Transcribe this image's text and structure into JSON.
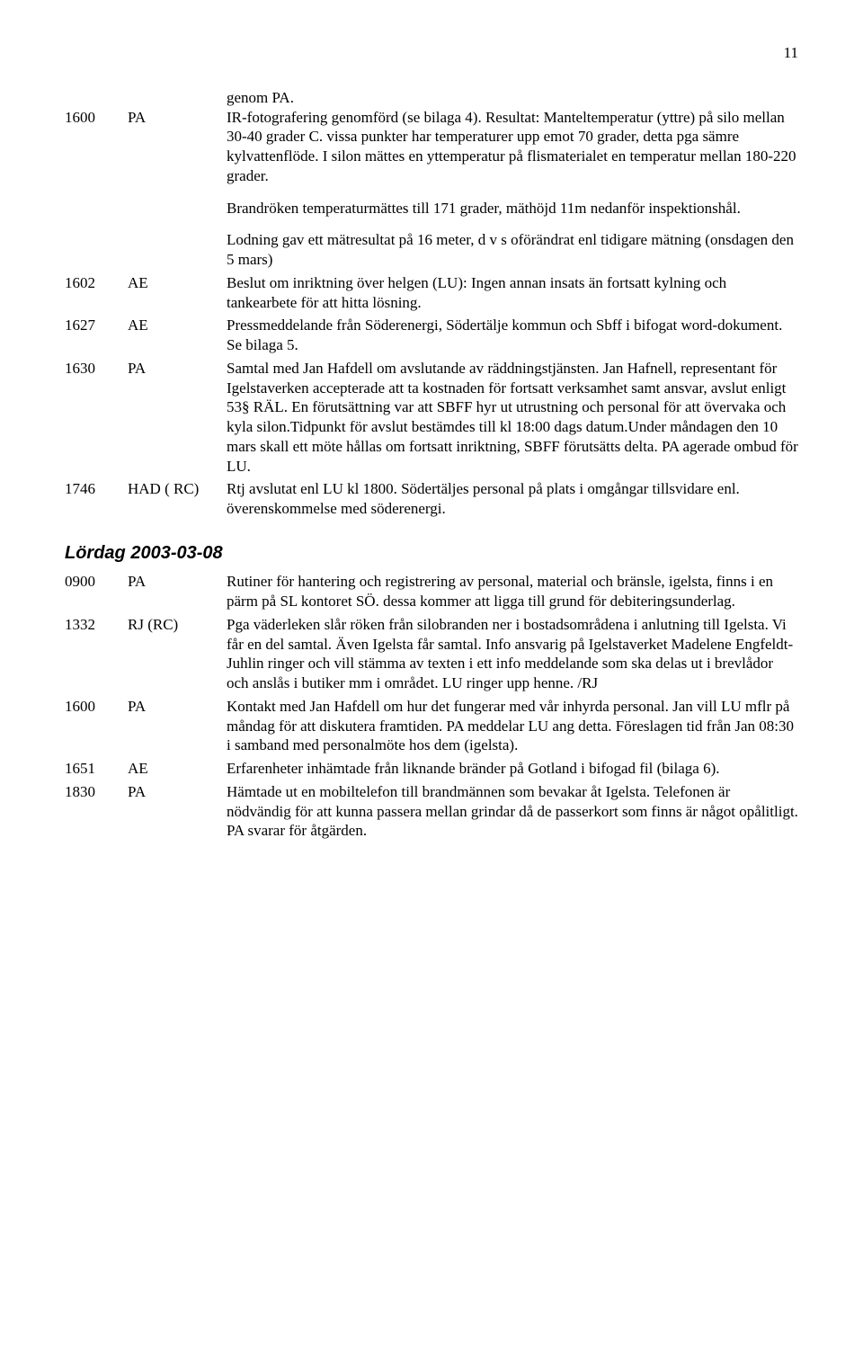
{
  "page_number": "11",
  "intro": {
    "line1": "genom PA.",
    "time": "1600",
    "who": "PA",
    "text": "IR-fotografering genomförd (se bilaga 4). Resultat: Manteltemperatur (yttre) på silo mellan 30-40 grader C. vissa punkter har temperaturer upp emot 70 grader, detta pga sämre kylvattenflöde. I silon mättes en yttemperatur på flismaterialet en temperatur mellan 180-220 grader."
  },
  "para1": "Brandröken temperaturmättes till 171 grader, mäthöjd 11m nedanför inspektionshål.",
  "para2": "Lodning gav ett mätresultat på 16 meter, d v s oförändrat enl tidigare mätning (onsdagen den 5 mars)",
  "rows1": [
    {
      "time": "1602",
      "who": "AE",
      "text": "Beslut om inriktning över helgen (LU): Ingen annan insats än fortsatt kylning och tankearbete för att hitta lösning."
    },
    {
      "time": "1627",
      "who": "AE",
      "text": "Pressmeddelande från Söderenergi, Södertälje kommun och Sbff i bifogat word-dokument. Se bilaga 5."
    },
    {
      "time": "1630",
      "who": "PA",
      "text": "Samtal med Jan Hafdell om avslutande av räddningstjänsten. Jan Hafnell, representant för Igelstaverken accepterade att ta kostnaden för fortsatt verksamhet samt ansvar, avslut enligt 53§ RÄL. En förutsättning var att SBFF hyr ut utrustning och personal för att övervaka och kyla silon.Tidpunkt för avslut bestämdes till kl 18:00 dags datum.Under måndagen den 10 mars skall ett möte hållas om fortsatt inriktning, SBFF förutsätts delta. PA agerade ombud för LU."
    },
    {
      "time": "1746",
      "who": "HAD ( RC)",
      "text": "Rtj avslutat enl LU kl 1800. Södertäljes personal på plats i omgångar tillsvidare enl. överenskommelse med söderenergi."
    }
  ],
  "section_heading": "Lördag 2003-03-08",
  "rows2": [
    {
      "time": "0900",
      "who": "PA",
      "text": "Rutiner för hantering och registrering av personal, material och bränsle, igelsta, finns i en pärm på SL kontoret SÖ. dessa kommer att ligga till grund för debiteringsunderlag."
    },
    {
      "time": "1332",
      "who": "RJ (RC)",
      "text": "Pga väderleken slår röken från silobranden ner i bostadsområdena i anlutning till Igelsta. Vi får en del samtal. Även Igelsta får samtal. Info ansvarig på Igelstaverket Madelene Engfeldt-Juhlin ringer och vill stämma av texten i ett info meddelande som ska delas ut i brevlådor och anslås i butiker mm i området. LU ringer upp henne. /RJ"
    },
    {
      "time": "1600",
      "who": "PA",
      "text": "Kontakt med Jan Hafdell om hur det fungerar med vår inhyrda personal. Jan vill  LU mflr på måndag för att diskutera framtiden. PA meddelar LU ang detta. Föreslagen tid från Jan 08:30 i samband med personalmöte hos dem (igelsta)."
    },
    {
      "time": "1651",
      "who": "AE",
      "text": "Erfarenheter inhämtade från liknande bränder på Gotland i bifogad fil (bilaga 6)."
    },
    {
      "time": "1830",
      "who": "PA",
      "text": "Hämtade ut en mobiltelefon till brandmännen som bevakar åt Igelsta. Telefonen är nödvändig för att kunna passera mellan grindar då de passerkort som finns är något opålitligt. PA svarar för åtgärden."
    }
  ]
}
